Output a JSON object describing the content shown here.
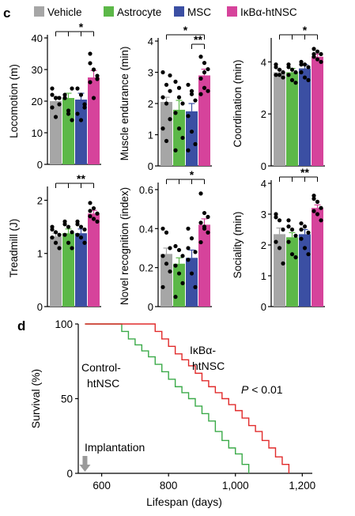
{
  "panel_c_letter": "c",
  "panel_d_letter": "d",
  "legend": [
    {
      "label": "Vehicle",
      "color": "#a6a6a6"
    },
    {
      "label": "Astrocyte",
      "color": "#5cb848"
    },
    {
      "label": "MSC",
      "color": "#3b4fa3"
    },
    {
      "label": "IκBα-htNSC",
      "color": "#d6439b"
    }
  ],
  "chart_data": [
    {
      "type": "bar",
      "panel": "c",
      "categories": [
        "Vehicle",
        "Astrocyte",
        "MSC",
        "IκBα-htNSC"
      ],
      "values": [
        20,
        21,
        20.5,
        27.5
      ],
      "errors": [
        1.5,
        1.5,
        2,
        2.2
      ],
      "points": [
        [
          24,
          21,
          19,
          18,
          15,
          21,
          22
        ],
        [
          22,
          17,
          24,
          21,
          16,
          14,
          21
        ],
        [
          24,
          22,
          18,
          16,
          14,
          19
        ],
        [
          35,
          30,
          27,
          26,
          21,
          28,
          32
        ]
      ],
      "ylabel": "Locomotion (m)",
      "ylim": [
        0,
        40
      ],
      "yticks": [
        0,
        10,
        20,
        30,
        40
      ],
      "significance": [
        {
          "label": "*",
          "from": 0,
          "to": [
            1,
            2,
            3
          ]
        }
      ]
    },
    {
      "type": "bar",
      "panel": "c",
      "categories": [
        "Vehicle",
        "Astrocyte",
        "MSC",
        "IκBα-htNSC"
      ],
      "values": [
        2.05,
        1.8,
        1.75,
        2.9
      ],
      "errors": [
        0.15,
        0.3,
        0.25,
        0.2
      ],
      "points": [
        [
          3,
          2.6,
          2.4,
          2.2,
          2,
          1.5,
          1.2,
          0.8,
          2.9
        ],
        [
          2.7,
          2.5,
          2,
          1.7,
          1.2,
          0.9,
          0.5,
          2.2
        ],
        [
          2.6,
          2.3,
          2.1,
          1.6,
          1.1,
          0.7,
          0.5,
          2.4
        ],
        [
          3.5,
          3.3,
          3.1,
          2.8,
          2.5,
          2.4,
          2.3,
          3
        ]
      ],
      "ylabel": "Muscle endurance (min)",
      "ylim": [
        0,
        4
      ],
      "yticks": [
        0,
        1,
        2,
        3,
        4
      ],
      "significance": [
        {
          "label": "*",
          "from": 0,
          "to": [
            3
          ]
        },
        {
          "label": "**",
          "from": 2,
          "to": [
            3
          ]
        }
      ]
    },
    {
      "type": "bar",
      "panel": "c",
      "categories": [
        "Vehicle",
        "Astrocyte",
        "MSC",
        "IκBα-htNSC"
      ],
      "values": [
        3.6,
        3.6,
        3.75,
        4.2
      ],
      "errors": [
        0.1,
        0.15,
        0.15,
        0.1
      ],
      "points": [
        [
          3.9,
          3.7,
          3.6,
          3.5,
          3.5,
          3.4,
          3.8
        ],
        [
          3.9,
          3.7,
          3.6,
          3.5,
          3.3,
          3.2,
          3.8
        ],
        [
          4,
          3.9,
          3.8,
          3.6,
          3.4,
          3.3,
          3.9
        ],
        [
          4.5,
          4.4,
          4.3,
          4.2,
          4.1,
          4,
          4.3
        ]
      ],
      "ylabel": "Coordination (min)",
      "ylim": [
        0,
        4.8
      ],
      "yticks": [
        0,
        2,
        4
      ],
      "significance": [
        {
          "label": "*",
          "from": 0,
          "to": [
            1,
            2,
            3
          ]
        }
      ]
    },
    {
      "type": "bar",
      "panel": "c",
      "categories": [
        "Vehicle",
        "Astrocyte",
        "MSC",
        "IκBα-htNSC"
      ],
      "values": [
        1.32,
        1.38,
        1.38,
        1.75
      ],
      "errors": [
        0.06,
        0.08,
        0.08,
        0.06
      ],
      "points": [
        [
          1.5,
          1.4,
          1.35,
          1.3,
          1.2,
          1.1,
          1.45
        ],
        [
          1.6,
          1.5,
          1.4,
          1.35,
          1.2,
          1.1,
          1.55
        ],
        [
          1.6,
          1.5,
          1.45,
          1.35,
          1.3,
          1.2,
          1.55
        ],
        [
          1.95,
          1.85,
          1.75,
          1.7,
          1.65,
          1.6,
          1.8
        ]
      ],
      "ylabel": "Treadmill (J)",
      "ylim": [
        0,
        2.2
      ],
      "yticks": [
        0,
        1,
        2
      ],
      "significance": [
        {
          "label": "**",
          "from": 0,
          "to": [
            1,
            2,
            3
          ]
        }
      ]
    },
    {
      "type": "bar",
      "panel": "c",
      "categories": [
        "Vehicle",
        "Astrocyte",
        "MSC",
        "IκBα-htNSC"
      ],
      "values": [
        0.27,
        0.22,
        0.25,
        0.42
      ],
      "errors": [
        0.03,
        0.03,
        0.04,
        0.03
      ],
      "points": [
        [
          0.4,
          0.38,
          0.3,
          0.26,
          0.22,
          0.18,
          0.1
        ],
        [
          0.31,
          0.29,
          0.26,
          0.21,
          0.17,
          0.12,
          0.05
        ],
        [
          0.4,
          0.35,
          0.28,
          0.24,
          0.17,
          0.1,
          0.3
        ],
        [
          0.58,
          0.48,
          0.46,
          0.43,
          0.41,
          0.38,
          0.33,
          0.4
        ]
      ],
      "ylabel": "Novel recognition (index)",
      "ylim": [
        0,
        0.62
      ],
      "yticks": [
        0,
        0.2,
        0.4,
        0.6
      ],
      "significance": [
        {
          "label": "*",
          "from": 0,
          "to": [
            1,
            2,
            3
          ]
        }
      ]
    },
    {
      "type": "bar",
      "panel": "c",
      "categories": [
        "Vehicle",
        "Astrocyte",
        "MSC",
        "IκBα-htNSC"
      ],
      "values": [
        2.35,
        2.25,
        2.35,
        3.2
      ],
      "errors": [
        0.2,
        0.15,
        0.15,
        0.1
      ],
      "points": [
        [
          2.9,
          2.8,
          2.5,
          2.1,
          1.9,
          1.4,
          3
        ],
        [
          2.8,
          2.5,
          2.3,
          2.1,
          1.7,
          1.6,
          2.6
        ],
        [
          2.7,
          2.6,
          2.4,
          2.2,
          1.9,
          1.7,
          2.5
        ],
        [
          3.6,
          3.4,
          3.2,
          3.1,
          3,
          2.8,
          3.5
        ]
      ],
      "ylabel": "Sociality (min)",
      "ylim": [
        0,
        4
      ],
      "yticks": [
        0,
        1,
        2,
        3,
        4
      ],
      "significance": [
        {
          "label": "**",
          "from": 0,
          "to": [
            1,
            2,
            3
          ]
        }
      ]
    },
    {
      "type": "line",
      "panel": "d",
      "xlabel": "Lifespan (days)",
      "ylabel": "Survival (%)",
      "xlim": [
        530,
        1230
      ],
      "ylim": [
        0,
        100
      ],
      "xticks": [
        600,
        800,
        1000,
        1200
      ],
      "xtick_labels": [
        "600",
        "800",
        "1,000",
        "1,200"
      ],
      "yticks": [
        0,
        50,
        100
      ],
      "series": [
        {
          "name": "Control-htNSC",
          "color": "#3aaa48",
          "x": [
            550,
            640,
            660,
            680,
            700,
            720,
            740,
            760,
            780,
            800,
            820,
            840,
            860,
            880,
            900,
            920,
            940,
            960,
            980,
            1000,
            1020,
            1040
          ],
          "y": [
            100,
            100,
            95,
            90,
            86,
            82,
            78,
            73,
            68,
            63,
            58,
            54,
            50,
            45,
            40,
            35,
            28,
            22,
            17,
            13,
            6,
            0
          ]
        },
        {
          "name": "IκBα-htNSC",
          "color": "#e12a2a",
          "x": [
            550,
            740,
            760,
            780,
            800,
            820,
            840,
            860,
            880,
            900,
            920,
            940,
            960,
            980,
            1000,
            1020,
            1040,
            1060,
            1080,
            1100,
            1120,
            1140,
            1160
          ],
          "y": [
            100,
            100,
            95,
            90,
            85,
            80,
            76,
            72,
            67,
            62,
            58,
            54,
            50,
            46,
            42,
            37,
            32,
            28,
            22,
            17,
            11,
            6,
            0
          ]
        }
      ],
      "annotations": {
        "control_label_line1": "Control-",
        "control_label_line2": "htNSC",
        "treated_label_line1": "IκBα-",
        "treated_label_line2": "htNSC",
        "pvalue_p": "P",
        "pvalue_rest": " < 0.01",
        "implantation_label": "Implantation",
        "implantation_day": 550
      }
    }
  ]
}
